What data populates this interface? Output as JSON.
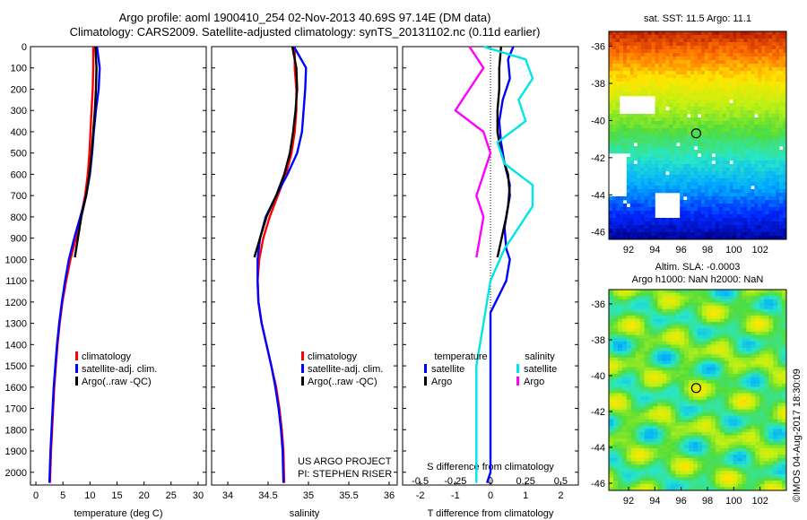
{
  "header": {
    "line1": "Argo profile: aoml 1900410_254 02-Nov-2013 40.69S 97.14E (DM data)",
    "line2": "Climatology: CARS2009. Satellite-adjusted climatology: synTS_20131102.nc (0.11d earlier)"
  },
  "colors": {
    "climatology": "#ff0000",
    "satellite": "#0000ff",
    "argo": "#000000",
    "sal_sat": "#00e5e5",
    "sal_argo": "#ff00ff"
  },
  "chart_data": [
    {
      "type": "line",
      "id": "temperature",
      "xlabel": "temperature (deg C)",
      "ylabel": "",
      "xlim": [
        -1,
        31.5
      ],
      "ylim": [
        2060,
        0
      ],
      "xticks": [
        "0",
        "5",
        "10",
        "15",
        "20",
        "25",
        "30"
      ],
      "yticks": [
        "0",
        "100",
        "200",
        "300",
        "400",
        "500",
        "600",
        "700",
        "800",
        "900",
        "1000",
        "1100",
        "1200",
        "1300",
        "1400",
        "1500",
        "1600",
        "1700",
        "1800",
        "1900",
        "2000"
      ],
      "legend": [
        "climatology",
        "satellite-adj. clim.",
        "Argo(..raw -QC)"
      ],
      "series": [
        {
          "name": "climatology",
          "color": "#ff0000",
          "x": [
            10.6,
            10.6,
            10.5,
            10.3,
            10.1,
            9.9,
            9.6,
            9.1,
            8.3,
            7.4,
            6.4,
            5.6,
            4.9,
            4.4,
            4.0,
            3.7,
            3.4,
            3.2,
            3.0,
            2.8,
            2.6
          ],
          "y": [
            0,
            100,
            200,
            300,
            400,
            500,
            600,
            700,
            800,
            900,
            1000,
            1100,
            1200,
            1300,
            1400,
            1500,
            1600,
            1700,
            1800,
            1900,
            2050
          ]
        },
        {
          "name": "satellite-adj. clim.",
          "color": "#0000ff",
          "x": [
            11.3,
            11.8,
            11.6,
            11.1,
            10.7,
            10.4,
            10.0,
            9.3,
            8.2,
            7.1,
            6.1,
            5.4,
            4.8,
            4.3,
            3.9,
            3.6,
            3.3,
            3.1,
            2.9,
            2.7,
            2.5
          ],
          "y": [
            0,
            100,
            200,
            300,
            400,
            500,
            600,
            700,
            800,
            900,
            1000,
            1100,
            1200,
            1300,
            1400,
            1500,
            1600,
            1700,
            1800,
            1900,
            2050
          ]
        },
        {
          "name": "Argo(..raw -QC)",
          "color": "#000000",
          "x": [
            11.0,
            11.2,
            11.1,
            10.9,
            10.6,
            10.3,
            9.9,
            9.3,
            8.4,
            7.2
          ],
          "y": [
            0,
            100,
            200,
            300,
            400,
            500,
            600,
            700,
            800,
            990
          ]
        }
      ]
    },
    {
      "type": "line",
      "id": "salinity",
      "xlabel": "salinity",
      "ylabel": "",
      "xlim": [
        33.8,
        36.1
      ],
      "ylim": [
        2060,
        0
      ],
      "xticks": [
        "34",
        "34.5",
        "35",
        "35.5",
        "36"
      ],
      "legend": [
        "climatology",
        "satellite-adj. clim.",
        "Argo(..raw -QC)"
      ],
      "series": [
        {
          "name": "climatology",
          "color": "#ff0000",
          "x": [
            34.83,
            34.83,
            34.85,
            34.85,
            34.83,
            34.79,
            34.72,
            34.62,
            34.52,
            34.44,
            34.39,
            34.37,
            34.38,
            34.42,
            34.48,
            34.54,
            34.6,
            34.64,
            34.67,
            34.69,
            34.7
          ],
          "y": [
            0,
            100,
            200,
            300,
            400,
            500,
            600,
            700,
            800,
            900,
            1000,
            1100,
            1200,
            1300,
            1400,
            1500,
            1600,
            1700,
            1800,
            1900,
            2050
          ]
        },
        {
          "name": "satellite-adj. clim.",
          "color": "#0000ff",
          "x": [
            34.82,
            34.97,
            34.96,
            34.94,
            34.92,
            34.86,
            34.74,
            34.6,
            34.47,
            34.4,
            34.37,
            34.37,
            34.38,
            34.42,
            34.48,
            34.54,
            34.59,
            34.63,
            34.66,
            34.68,
            34.69
          ],
          "y": [
            0,
            100,
            200,
            300,
            400,
            500,
            600,
            700,
            800,
            900,
            1000,
            1100,
            1200,
            1300,
            1400,
            1500,
            1600,
            1700,
            1800,
            1900,
            2050
          ]
        },
        {
          "name": "Argo(..raw -QC)",
          "color": "#000000",
          "x": [
            34.8,
            34.85,
            34.86,
            34.84,
            34.81,
            34.77,
            34.7,
            34.6,
            34.48,
            34.4,
            34.33
          ],
          "y": [
            0,
            100,
            200,
            300,
            400,
            500,
            600,
            700,
            800,
            900,
            990
          ]
        }
      ],
      "annotation": [
        "US ARGO PROJECT",
        "PI: STEPHEN RISER"
      ]
    },
    {
      "type": "line",
      "id": "difference",
      "xlabel": "T difference from climatology",
      "xlabel_top": "S difference from climatology",
      "xlim": [
        -2.5,
        2.5
      ],
      "ylim": [
        2060,
        0
      ],
      "xticks": [
        "-2",
        "-1",
        "0",
        "1",
        "2"
      ],
      "sticks": [
        "-0.5",
        "-0.25",
        "0",
        "0.25",
        "0.5"
      ],
      "legend_headers": [
        "temperature",
        "salinity"
      ],
      "legend": [
        "satellite",
        "Argo",
        "satellite",
        "Argo"
      ],
      "series": [
        {
          "name": "satellite",
          "color": "#0000ff",
          "x": [
            0.65,
            0.5,
            0.55,
            0.35,
            0.25,
            0.3,
            0.4,
            0.55,
            0.5,
            0.4,
            0.45,
            0.55,
            0.5,
            0.45,
            0.0,
            0.0,
            0.0,
            0.0,
            0.0,
            0.0,
            -0.1
          ],
          "y": [
            0,
            60,
            150,
            250,
            350,
            450,
            550,
            650,
            750,
            850,
            950,
            1000,
            1050,
            1100,
            1250,
            1400,
            1600,
            1800,
            1900,
            2000,
            2050
          ]
        },
        {
          "name": "Argo",
          "color": "#000000",
          "x": [
            0.3,
            0.25,
            0.25,
            0.2,
            0.2,
            0.3,
            0.5,
            0.55,
            0.45,
            0.2
          ],
          "y": [
            0,
            100,
            200,
            300,
            400,
            500,
            600,
            700,
            800,
            990
          ]
        },
        {
          "name": "satellite",
          "color": "#00e5e5",
          "x": [
            -0.05,
            0.25,
            0.3,
            0.2,
            0.25,
            0.05,
            0.1,
            0.3,
            0.3,
            0.2,
            0.1,
            0.0,
            -0.05,
            -0.1,
            -0.1,
            -0.1,
            -0.1
          ],
          "y": [
            0,
            60,
            150,
            250,
            350,
            450,
            550,
            650,
            750,
            850,
            950,
            1100,
            1300,
            1500,
            1700,
            1900,
            2050
          ]
        },
        {
          "name": "Argo",
          "color": "#ff00ff",
          "x": [
            -0.15,
            -0.05,
            -0.15,
            -0.25,
            -0.05,
            0.0,
            -0.05,
            -0.1,
            -0.05,
            -0.1
          ],
          "y": [
            0,
            100,
            200,
            300,
            400,
            500,
            600,
            700,
            800,
            990
          ]
        }
      ]
    },
    {
      "type": "heatmap",
      "id": "sst",
      "title": "sat. SST: 11.5 Argo: 11.1",
      "xticks": [
        "92",
        "94",
        "96",
        "98",
        "100",
        "102"
      ],
      "yticks": [
        "-36",
        "-38",
        "-40",
        "-42",
        "-44",
        "-46"
      ]
    },
    {
      "type": "heatmap",
      "id": "sla",
      "title": "Altim. SLA: -0.0003",
      "title2": "Argo h1000: NaN h2000: NaN",
      "xticks": [
        "92",
        "94",
        "96",
        "98",
        "100",
        "102"
      ],
      "yticks": [
        "-36",
        "-38",
        "-40",
        "-42",
        "-44",
        "-46"
      ]
    }
  ],
  "credit": "©IMOS 04-Aug-2017 18:30:09"
}
